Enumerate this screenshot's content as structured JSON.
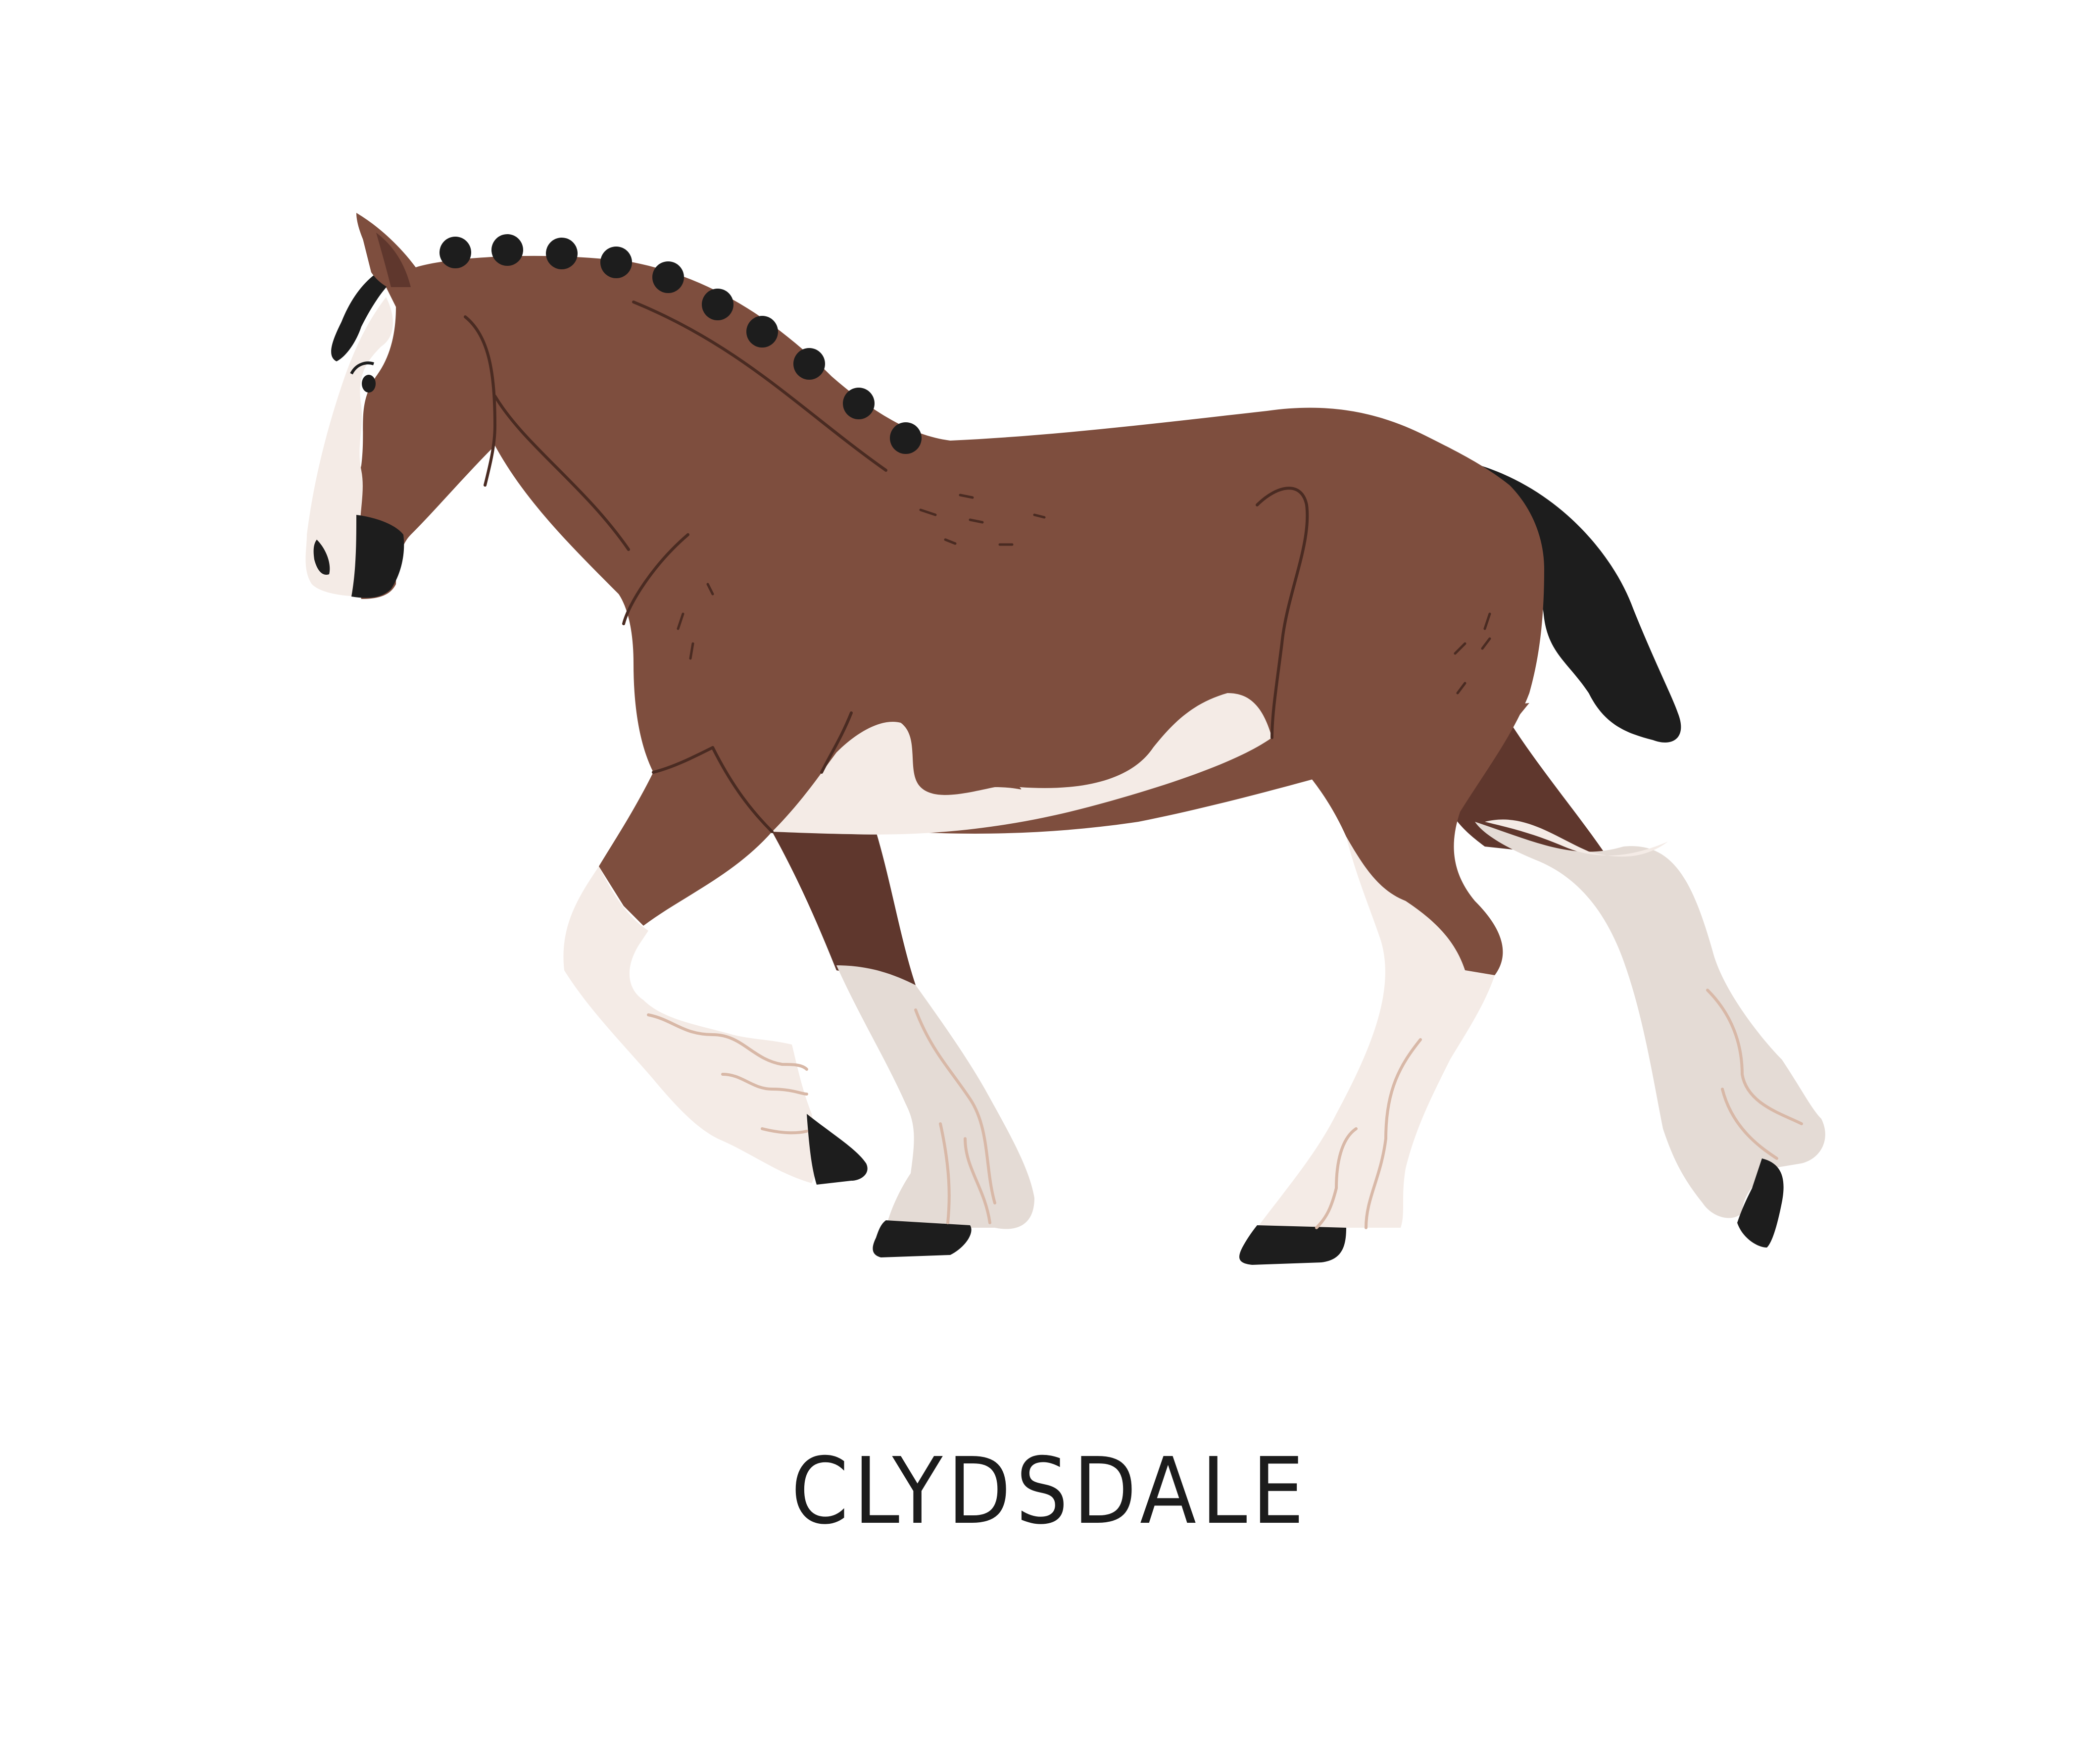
{
  "caption": "CLYDSDALE",
  "colors": {
    "background": "#ffffff",
    "coat": "#7e4e3e",
    "coat_dark": "#5f372d",
    "white_markings": "#f4ebe6",
    "feathers": "#e4dbd5",
    "mane_tail_hooves": "#1d1d1d",
    "line_detail": "#4a2b22",
    "feather_detail": "#d8b8a7",
    "caption_text": "#1c1c1c"
  },
  "icons": [
    "horse-illustration"
  ]
}
